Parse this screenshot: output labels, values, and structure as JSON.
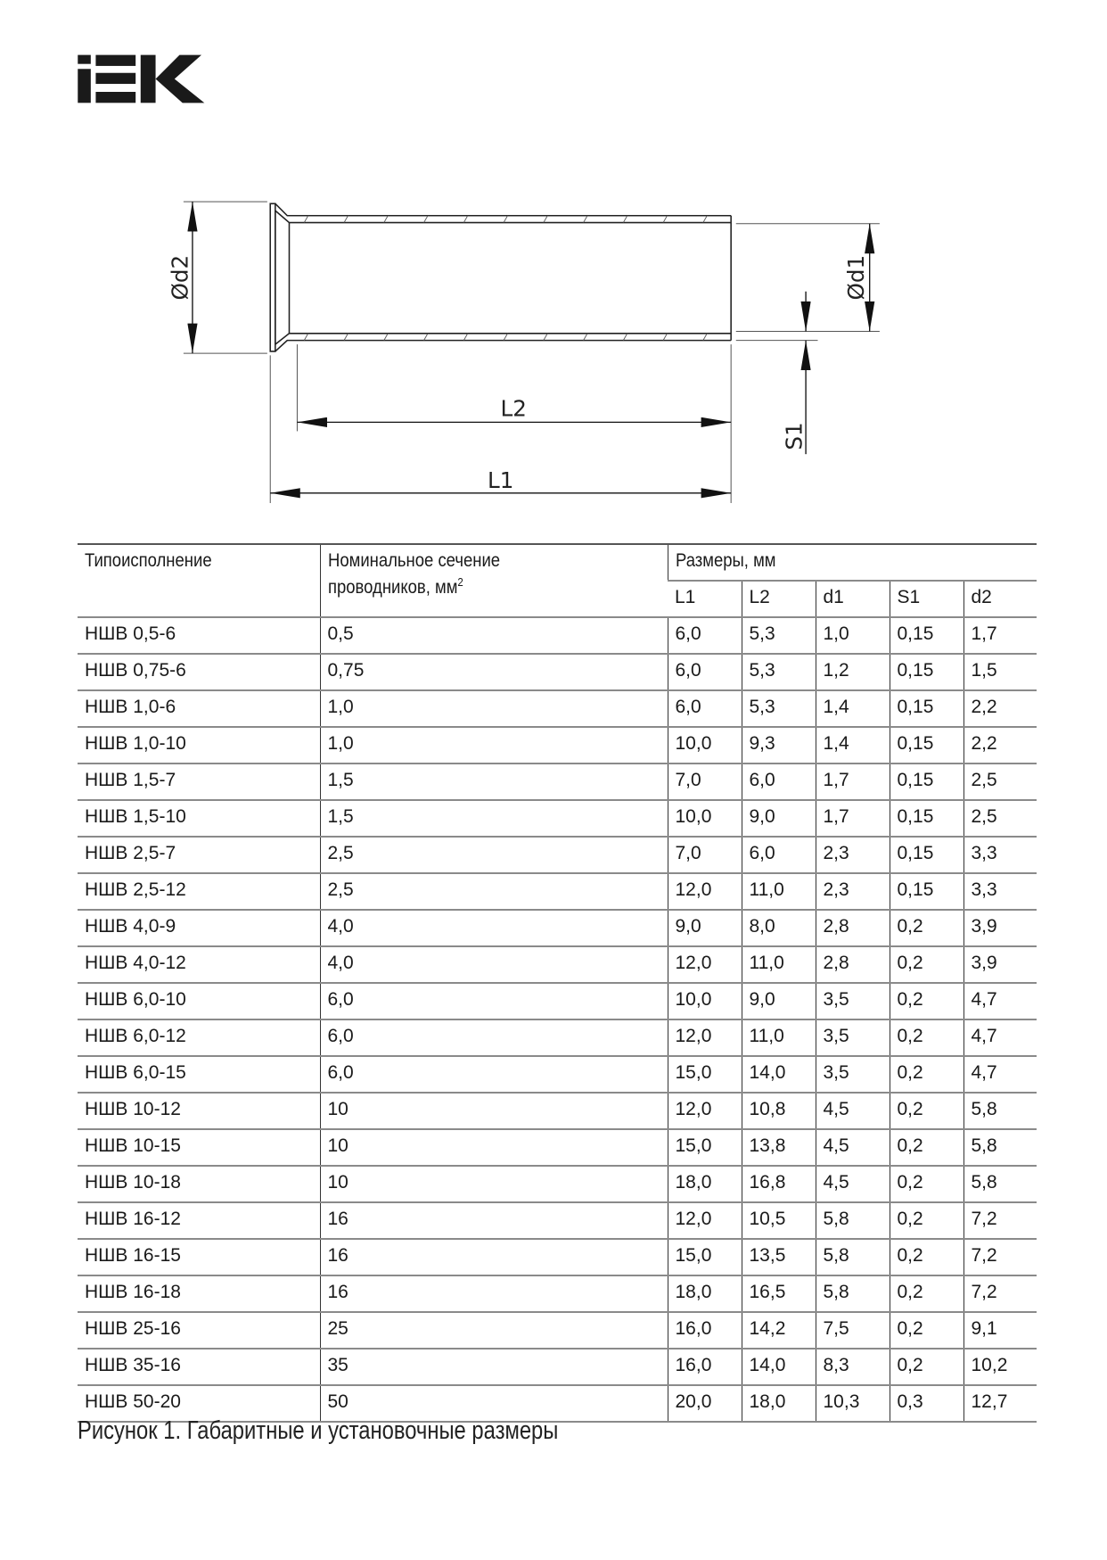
{
  "logo": {
    "text": "IEK"
  },
  "drawing": {
    "labels": {
      "d2": "Ød2",
      "d1": "Ød1",
      "L2": "L2",
      "L1": "L1",
      "S1": "S1"
    }
  },
  "table": {
    "headers": {
      "type": "Типоисполнение",
      "section": "Номинальное сечение проводников, мм",
      "section_sup": "2",
      "dimensions": "Размеры, мм"
    },
    "sub_headers": [
      "L1",
      "L2",
      "d1",
      "S1",
      "d2"
    ],
    "rows": [
      [
        "НШВ 0,5-6",
        "0,5",
        "6,0",
        "5,3",
        "1,0",
        "0,15",
        "1,7"
      ],
      [
        "НШВ 0,75-6",
        "0,75",
        "6,0",
        "5,3",
        "1,2",
        "0,15",
        "1,5"
      ],
      [
        "НШВ 1,0-6",
        "1,0",
        "6,0",
        "5,3",
        "1,4",
        "0,15",
        "2,2"
      ],
      [
        "НШВ 1,0-10",
        "1,0",
        "10,0",
        "9,3",
        "1,4",
        "0,15",
        "2,2"
      ],
      [
        "НШВ 1,5-7",
        "1,5",
        "7,0",
        "6,0",
        "1,7",
        "0,15",
        "2,5"
      ],
      [
        "НШВ 1,5-10",
        "1,5",
        "10,0",
        "9,0",
        "1,7",
        "0,15",
        "2,5"
      ],
      [
        "НШВ 2,5-7",
        "2,5",
        "7,0",
        "6,0",
        "2,3",
        "0,15",
        "3,3"
      ],
      [
        "НШВ 2,5-12",
        "2,5",
        "12,0",
        "11,0",
        "2,3",
        "0,15",
        "3,3"
      ],
      [
        "НШВ 4,0-9",
        "4,0",
        "9,0",
        "8,0",
        "2,8",
        "0,2",
        "3,9"
      ],
      [
        "НШВ 4,0-12",
        "4,0",
        "12,0",
        "11,0",
        "2,8",
        "0,2",
        "3,9"
      ],
      [
        "НШВ 6,0-10",
        "6,0",
        "10,0",
        "9,0",
        "3,5",
        "0,2",
        "4,7"
      ],
      [
        "НШВ 6,0-12",
        "6,0",
        "12,0",
        "11,0",
        "3,5",
        "0,2",
        "4,7"
      ],
      [
        "НШВ 6,0-15",
        "6,0",
        "15,0",
        "14,0",
        "3,5",
        "0,2",
        "4,7"
      ],
      [
        "НШВ 10-12",
        "10",
        "12,0",
        "10,8",
        "4,5",
        "0,2",
        "5,8"
      ],
      [
        "НШВ 10-15",
        "10",
        "15,0",
        "13,8",
        "4,5",
        "0,2",
        "5,8"
      ],
      [
        "НШВ 10-18",
        "10",
        "18,0",
        "16,8",
        "4,5",
        "0,2",
        "5,8"
      ],
      [
        "НШВ 16-12",
        "16",
        "12,0",
        "10,5",
        "5,8",
        "0,2",
        "7,2"
      ],
      [
        "НШВ 16-15",
        "16",
        "15,0",
        "13,5",
        "5,8",
        "0,2",
        "7,2"
      ],
      [
        "НШВ 16-18",
        "16",
        "18,0",
        "16,5",
        "5,8",
        "0,2",
        "7,2"
      ],
      [
        "НШВ 25-16",
        "25",
        "16,0",
        "14,2",
        "7,5",
        "0,2",
        "9,1"
      ],
      [
        "НШВ 35-16",
        "35",
        "16,0",
        "14,0",
        "8,3",
        "0,2",
        "10,2"
      ],
      [
        "НШВ 50-20",
        "50",
        "20,0",
        "18,0",
        "10,3",
        "0,3",
        "12,7"
      ]
    ]
  },
  "caption": "Рисунок 1. Габаритные и установочные размеры"
}
